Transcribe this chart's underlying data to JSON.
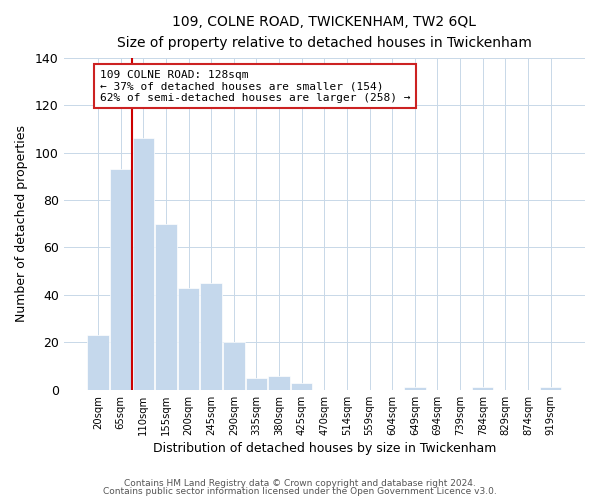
{
  "title": "109, COLNE ROAD, TWICKENHAM, TW2 6QL",
  "subtitle": "Size of property relative to detached houses in Twickenham",
  "xlabel": "Distribution of detached houses by size in Twickenham",
  "ylabel": "Number of detached properties",
  "bar_labels": [
    "20sqm",
    "65sqm",
    "110sqm",
    "155sqm",
    "200sqm",
    "245sqm",
    "290sqm",
    "335sqm",
    "380sqm",
    "425sqm",
    "470sqm",
    "514sqm",
    "559sqm",
    "604sqm",
    "649sqm",
    "694sqm",
    "739sqm",
    "784sqm",
    "829sqm",
    "874sqm",
    "919sqm"
  ],
  "bar_values": [
    23,
    93,
    106,
    70,
    43,
    45,
    20,
    5,
    6,
    3,
    0,
    0,
    0,
    0,
    1,
    0,
    0,
    1,
    0,
    0,
    1
  ],
  "bar_color": "#c5d8ec",
  "grid_color": "#c8d8e8",
  "vline_color": "#cc0000",
  "annotation_title": "109 COLNE ROAD: 128sqm",
  "annotation_line1": "← 37% of detached houses are smaller (154)",
  "annotation_line2": "62% of semi-detached houses are larger (258) →",
  "ylim": [
    0,
    140
  ],
  "yticks": [
    0,
    20,
    40,
    60,
    80,
    100,
    120,
    140
  ],
  "footer1": "Contains HM Land Registry data © Crown copyright and database right 2024.",
  "footer2": "Contains public sector information licensed under the Open Government Licence v3.0."
}
